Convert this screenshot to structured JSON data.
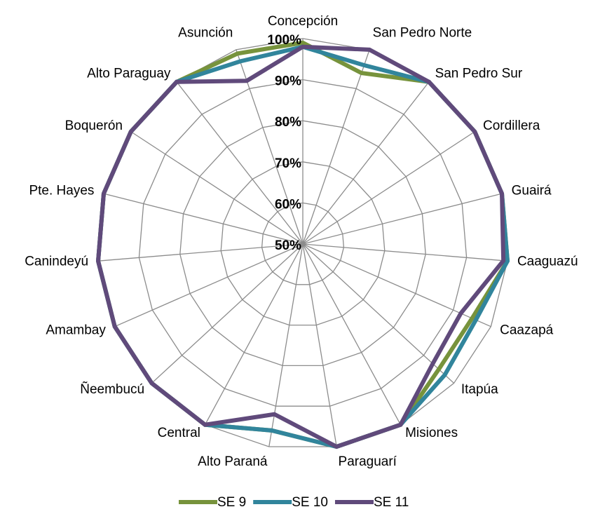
{
  "chart_data": {
    "type": "radar",
    "categories": [
      "Concepción",
      "San Pedro Norte",
      "San Pedro Sur",
      "Cordillera",
      "Guairá",
      "Caaguazú",
      "Caazapá",
      "Itapúa",
      "Misiones",
      "Paraguarí",
      "Alto Paraná",
      "Central",
      "Ñeembucú",
      "Amambay",
      "Canindeyú",
      "Pte. Hayes",
      "Boquerón",
      "Alto Paraguay",
      "Asunción"
    ],
    "series": [
      {
        "name": "SE 9",
        "color": "#77933c",
        "values": [
          99,
          94,
          100,
          100,
          100,
          100,
          95,
          95,
          100,
          100,
          96,
          100,
          100,
          100,
          100,
          100,
          100,
          100,
          99
        ]
      },
      {
        "name": "SE 10",
        "color": "#31859c",
        "values": [
          98,
          96,
          100,
          100,
          100,
          100,
          96,
          97,
          100,
          100,
          96,
          100,
          100,
          100,
          100,
          100,
          100,
          100,
          97
        ]
      },
      {
        "name": "SE 11",
        "color": "#604a7b",
        "values": [
          98,
          100,
          100,
          100,
          100,
          99,
          92,
          93,
          100,
          100,
          92,
          100,
          100,
          100,
          100,
          100,
          100,
          100,
          92
        ]
      }
    ],
    "ylim": [
      50,
      100
    ],
    "yticks": [
      {
        "value": 50,
        "label": "50%"
      },
      {
        "value": 60,
        "label": "60%"
      },
      {
        "value": 70,
        "label": "70%"
      },
      {
        "value": 80,
        "label": "80%"
      },
      {
        "value": 90,
        "label": "90%"
      },
      {
        "value": 100,
        "label": "100%"
      }
    ],
    "grid": true,
    "legend": "bottom"
  }
}
